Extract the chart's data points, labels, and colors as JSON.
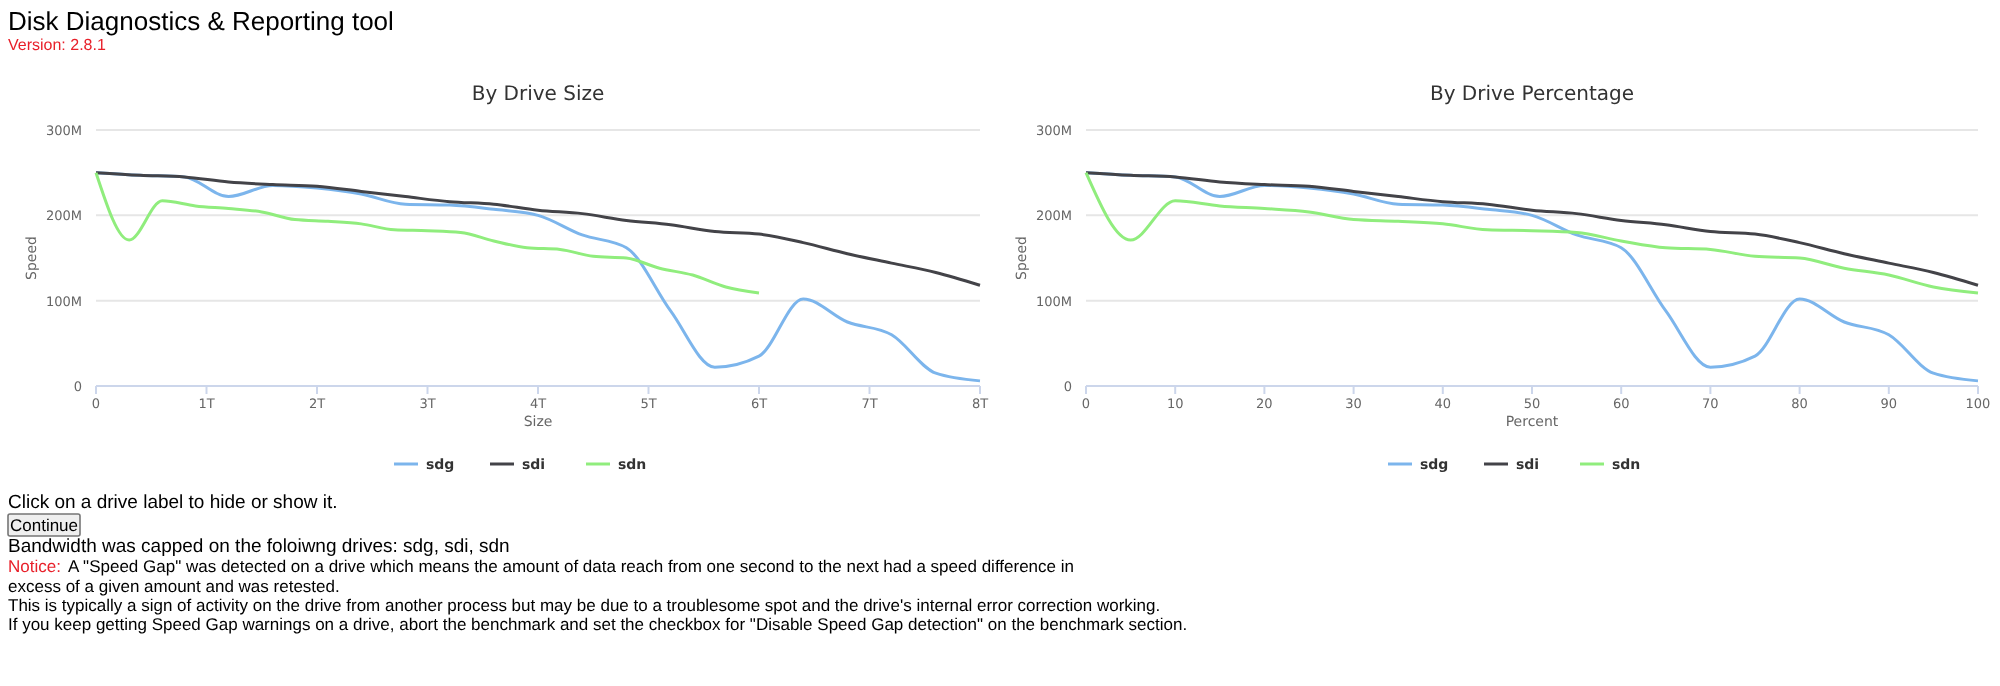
{
  "chart_data": [
    {
      "type": "line",
      "title": "By Drive Size",
      "xlabel": "Size",
      "ylabel": "Speed",
      "xlim": [
        0,
        8
      ],
      "xticks": [
        0,
        {
          "value": 1,
          "label": "1T"
        },
        {
          "value": 2,
          "label": "2T"
        },
        {
          "value": 3,
          "label": "3T"
        },
        {
          "value": 4,
          "label": "4T"
        },
        {
          "value": 5,
          "label": "5T"
        },
        {
          "value": 6,
          "label": "6T"
        },
        {
          "value": 7,
          "label": "7T"
        },
        {
          "value": 8,
          "label": "8T"
        }
      ],
      "ylim": [
        0,
        300
      ],
      "yticks": [
        0,
        {
          "value": 100,
          "label": "100M"
        },
        {
          "value": 200,
          "label": "200M"
        },
        {
          "value": 300,
          "label": "300M"
        }
      ],
      "grid": "y",
      "legend": "bottom",
      "marker": "none",
      "line_style": "solid",
      "series": [
        {
          "name": "sdg",
          "color": "#7cb5ec",
          "x": [
            0,
            0.4,
            0.8,
            1.2,
            1.6,
            2,
            2.4,
            2.8,
            3.2,
            3.6,
            4,
            4.4,
            4.8,
            5.2,
            5.6,
            6,
            6.4,
            6.8,
            7.2,
            7.6,
            8
          ],
          "values": [
            250,
            247,
            245,
            222,
            235,
            232,
            225,
            213,
            212,
            207,
            200,
            177,
            162,
            88,
            22,
            35,
            102,
            75,
            60,
            15,
            6
          ]
        },
        {
          "name": "sdi",
          "color": "#434348",
          "x": [
            0,
            0.4,
            0.8,
            1.2,
            1.6,
            2,
            2.4,
            2.8,
            3.2,
            3.6,
            4,
            4.4,
            4.8,
            5.2,
            5.6,
            6,
            6.4,
            6.8,
            7.2,
            7.6,
            8
          ],
          "values": [
            250,
            247,
            245,
            239,
            236,
            234,
            228,
            222,
            216,
            213,
            206,
            202,
            194,
            189,
            181,
            178,
            168,
            155,
            144,
            133,
            118
          ]
        },
        {
          "name": "sdn",
          "color": "#90ed7d",
          "x": [
            0,
            0.3,
            0.6,
            0.9,
            1.2,
            1.5,
            1.8,
            2.1,
            2.4,
            2.7,
            3,
            3.3,
            3.6,
            3.9,
            4.2,
            4.5,
            4.8,
            5.1,
            5.4,
            5.7,
            6
          ],
          "values": [
            250,
            171,
            217,
            211,
            208,
            204,
            195,
            193,
            190,
            183,
            182,
            180,
            170,
            162,
            160,
            152,
            150,
            138,
            130,
            116,
            109
          ]
        }
      ],
      "annotations": [
        "Disk Diagnostics & Reporting tool",
        "Version: 2.8.1",
        "Click on a drive label to hide or show it.",
        "Continue",
        "Bandwidth was capped on the foloiwng drives: sdg, sdi, sdn",
        "Notice:",
        "A \"Speed Gap\" was detected on a drive which means the amount of data reach from one second to the next had a speed difference in",
        "excess of a given amount and was retested.",
        "This is typically a sign of activity on the drive from another process but may be due to a troublesome spot and the drive's internal error correction working.",
        "If you keep getting Speed Gap warnings on a drive, abort the benchmark and set the checkbox for \"Disable Speed Gap detection\" on the benchmark section."
      ]
    },
    {
      "type": "line",
      "title": "By Drive Percentage",
      "xlabel": "Percent",
      "ylabel": "Speed",
      "xlim": [
        0,
        100
      ],
      "xticks": [
        0,
        10,
        20,
        30,
        40,
        50,
        60,
        70,
        80,
        90,
        100
      ],
      "ylim": [
        0,
        300
      ],
      "yticks": [
        0,
        {
          "value": 100,
          "label": "100M"
        },
        {
          "value": 200,
          "label": "200M"
        },
        {
          "value": 300,
          "label": "300M"
        }
      ],
      "grid": "y",
      "legend": "bottom",
      "marker": "none",
      "line_style": "solid",
      "x": [
        0,
        5,
        10,
        15,
        20,
        25,
        30,
        35,
        40,
        45,
        50,
        55,
        60,
        65,
        70,
        75,
        80,
        85,
        90,
        95,
        100
      ],
      "series": [
        {
          "name": "sdg",
          "color": "#7cb5ec",
          "values": [
            250,
            247,
            245,
            222,
            235,
            232,
            225,
            213,
            212,
            207,
            200,
            177,
            162,
            88,
            22,
            35,
            102,
            75,
            60,
            15,
            6
          ]
        },
        {
          "name": "sdi",
          "color": "#434348",
          "values": [
            250,
            247,
            245,
            239,
            236,
            234,
            228,
            222,
            216,
            213,
            206,
            202,
            194,
            189,
            181,
            178,
            168,
            155,
            144,
            133,
            118
          ]
        },
        {
          "name": "sdn",
          "color": "#90ed7d",
          "values": [
            250,
            171,
            217,
            211,
            208,
            204,
            195,
            193,
            190,
            183,
            182,
            180,
            170,
            162,
            160,
            152,
            150,
            138,
            130,
            116,
            109
          ]
        }
      ]
    }
  ]
}
